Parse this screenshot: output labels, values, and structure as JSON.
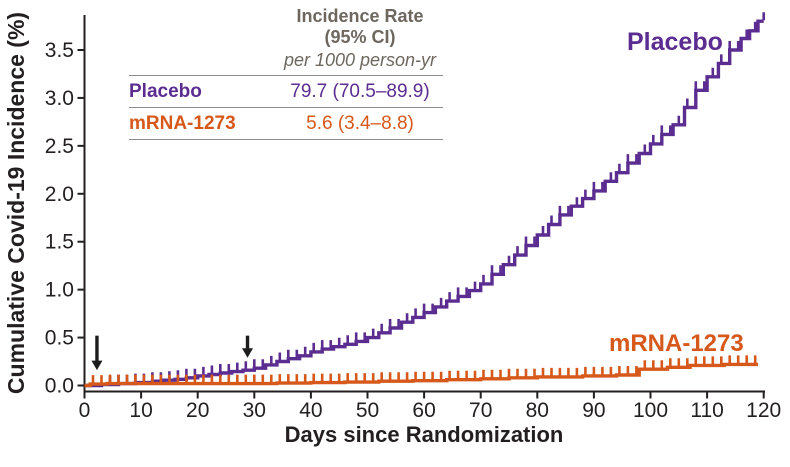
{
  "figure": {
    "y_axis_title": "Cumulative Covid-19 Incidence (%)",
    "x_axis_title": "Days since Randomization",
    "curve_labels": {
      "placebo": "Placebo",
      "mrna": "mRNA-1273"
    }
  },
  "inset_table": {
    "header_line1": "Incidence Rate",
    "header_line2": "(95% CI)",
    "unit": "per 1000 person-yr",
    "rows": [
      {
        "label": "Placebo",
        "value": "79.7 (70.5–89.9)"
      },
      {
        "label": "mRNA-1273",
        "value": "5.6 (3.4–8.8)"
      }
    ]
  },
  "colors": {
    "placebo": "#5c2d91",
    "mrna": "#d6581a",
    "axis": "#231f20",
    "table_gray": "#6d675f",
    "rule_gray": "#8c8c8c",
    "arrow": "#1c1c1c"
  },
  "chart_data": {
    "type": "line",
    "subtype": "kaplan-meier-step",
    "title": "",
    "xlabel": "Days since Randomization",
    "ylabel": "Cumulative Covid-19 Incidence (%)",
    "xlim": [
      0,
      120
    ],
    "ylim": [
      0,
      3.9
    ],
    "x_tick_values": [
      0,
      10,
      20,
      30,
      40,
      50,
      60,
      70,
      80,
      90,
      100,
      110,
      120
    ],
    "x_tick_labels": [
      "0",
      "10",
      "20",
      "30",
      "40",
      "50",
      "60",
      "70",
      "80",
      "90",
      "100",
      "110",
      "120"
    ],
    "y_tick_values": [
      0,
      0.5,
      1.0,
      1.5,
      2.0,
      2.5,
      3.0,
      3.5
    ],
    "y_tick_labels": [
      "0.0",
      "0.5",
      "1.0",
      "1.5",
      "2.0",
      "2.5",
      "3.0",
      "3.5"
    ],
    "grid": false,
    "legend_position": "inset-table-top-left",
    "censor_tick_interval_days": 1.5,
    "series": [
      {
        "name": "Placebo",
        "color_key": "placebo",
        "tick_start_day": 4.5,
        "points": [
          [
            0,
            0
          ],
          [
            3,
            0.01
          ],
          [
            6,
            0.02
          ],
          [
            9,
            0.03
          ],
          [
            12,
            0.045
          ],
          [
            14,
            0.055
          ],
          [
            16,
            0.065
          ],
          [
            18,
            0.08
          ],
          [
            20,
            0.1
          ],
          [
            22,
            0.115
          ],
          [
            24,
            0.13
          ],
          [
            26,
            0.145
          ],
          [
            28,
            0.16
          ],
          [
            30,
            0.18
          ],
          [
            32,
            0.215
          ],
          [
            34,
            0.25
          ],
          [
            36,
            0.28
          ],
          [
            38,
            0.31
          ],
          [
            40,
            0.35
          ],
          [
            42,
            0.38
          ],
          [
            44,
            0.405
          ],
          [
            46,
            0.43
          ],
          [
            48,
            0.46
          ],
          [
            50,
            0.5
          ],
          [
            52,
            0.55
          ],
          [
            54,
            0.6
          ],
          [
            56,
            0.66
          ],
          [
            58,
            0.71
          ],
          [
            60,
            0.76
          ],
          [
            62,
            0.82
          ],
          [
            64,
            0.88
          ],
          [
            66,
            0.93
          ],
          [
            68,
            0.99
          ],
          [
            70,
            1.06
          ],
          [
            72,
            1.16
          ],
          [
            74,
            1.26
          ],
          [
            76,
            1.36
          ],
          [
            78,
            1.46
          ],
          [
            80,
            1.57
          ],
          [
            82,
            1.68
          ],
          [
            84,
            1.78
          ],
          [
            86,
            1.87
          ],
          [
            88,
            1.95
          ],
          [
            90,
            2.03
          ],
          [
            92,
            2.13
          ],
          [
            94,
            2.22
          ],
          [
            96,
            2.32
          ],
          [
            98,
            2.42
          ],
          [
            100,
            2.52
          ],
          [
            102,
            2.62
          ],
          [
            104,
            2.72
          ],
          [
            106,
            2.9
          ],
          [
            108,
            3.08
          ],
          [
            110,
            3.22
          ],
          [
            112,
            3.36
          ],
          [
            114,
            3.5
          ],
          [
            116,
            3.62
          ],
          [
            117.5,
            3.7
          ],
          [
            119,
            3.8
          ],
          [
            120,
            3.8
          ]
        ]
      },
      {
        "name": "mRNA-1273",
        "color_key": "mrna",
        "tick_start_day": 1.5,
        "points": [
          [
            0,
            0
          ],
          [
            1,
            0.015
          ],
          [
            4,
            0.02
          ],
          [
            34,
            0.025
          ],
          [
            40,
            0.03
          ],
          [
            46,
            0.035
          ],
          [
            52,
            0.045
          ],
          [
            58,
            0.05
          ],
          [
            64,
            0.06
          ],
          [
            70,
            0.07
          ],
          [
            75,
            0.08
          ],
          [
            80,
            0.09
          ],
          [
            88,
            0.1
          ],
          [
            94,
            0.11
          ],
          [
            98,
            0.17
          ],
          [
            103,
            0.19
          ],
          [
            107,
            0.21
          ],
          [
            113,
            0.22
          ],
          [
            119,
            0.22
          ]
        ]
      }
    ],
    "arrows": [
      {
        "day": 2.2,
        "from_pct": 0.52,
        "to_pct": 0.16
      },
      {
        "day": 28.8,
        "from_pct": 0.52,
        "to_pct": 0.29
      }
    ]
  }
}
